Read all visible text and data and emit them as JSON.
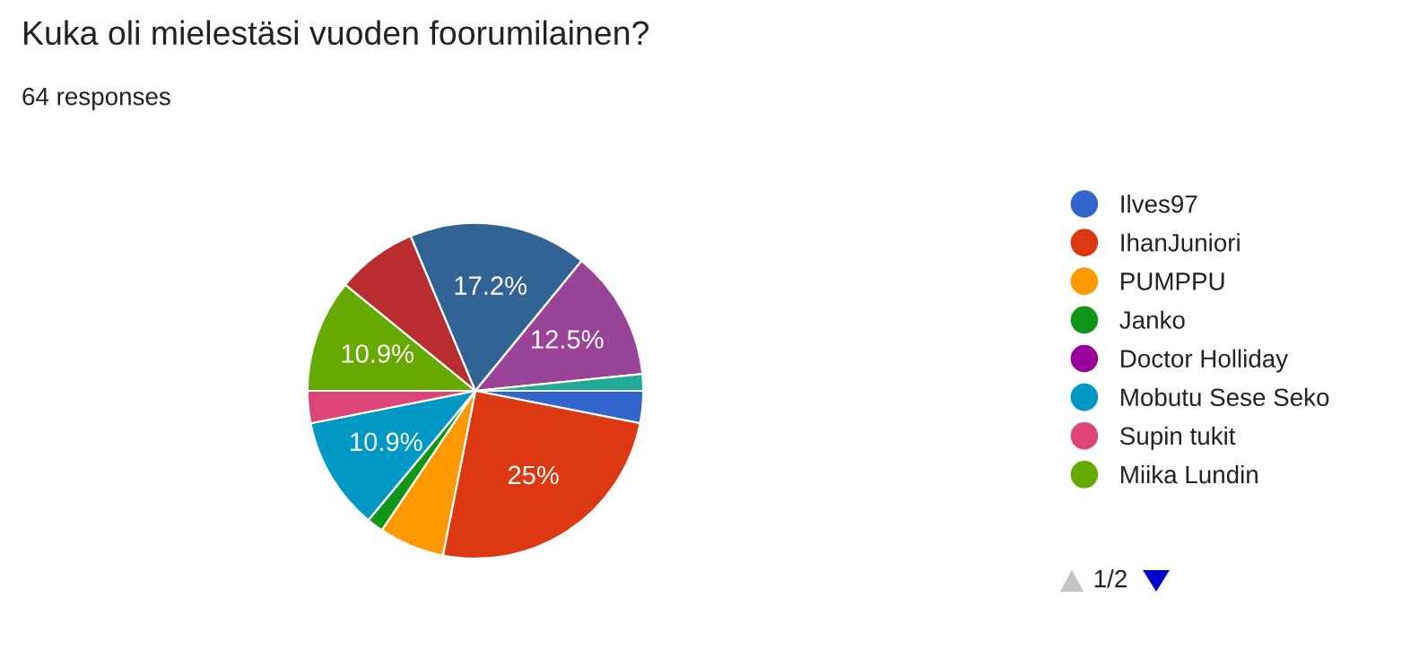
{
  "chart_data": {
    "type": "pie",
    "title": "Kuka oli mielestäsi vuoden foorumilainen?",
    "subtitle": "64 responses",
    "categories": [
      "Ilves97",
      "IhanJuniori",
      "PUMPPU",
      "Janko",
      "Doctor Holliday",
      "Mobutu Sese Seko",
      "Supin tukit",
      "Miika Lundin",
      null,
      null,
      null,
      null
    ],
    "values": [
      3.1,
      25,
      6.3,
      1.6,
      0,
      10.9,
      3.1,
      10.9,
      7.8,
      17.2,
      12.5,
      1.6
    ],
    "colors": [
      "#3366cc",
      "#dc3912",
      "#ff9900",
      "#109618",
      "#990099",
      "#0099c6",
      "#dd4477",
      "#66aa00",
      "#b82e2e",
      "#316395",
      "#994499",
      "#22aa99"
    ],
    "value_labels": [
      null,
      "25%",
      null,
      null,
      null,
      "10.9%",
      null,
      "10.9%",
      null,
      "17.2%",
      "12.5%",
      null
    ],
    "legend": "right",
    "annotations": [
      "1/2"
    ]
  }
}
